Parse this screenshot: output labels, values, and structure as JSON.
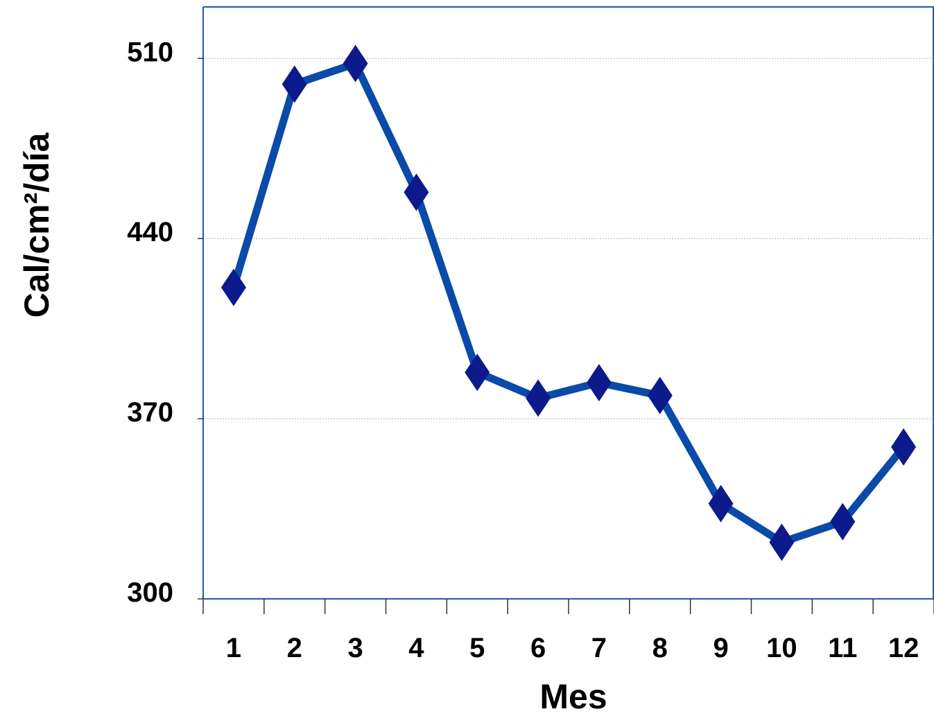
{
  "chart_data": {
    "type": "line",
    "categories": [
      "1",
      "2",
      "3",
      "4",
      "5",
      "6",
      "7",
      "8",
      "9",
      "10",
      "11",
      "12"
    ],
    "series": [
      {
        "values": [
          421,
          500,
          508,
          458,
          388,
          378,
          384,
          379,
          337,
          322,
          330,
          359
        ]
      }
    ],
    "title": "",
    "xlabel": "Mes",
    "ylabel": "Cal/cm²/día",
    "ylim": [
      300,
      530
    ],
    "yticks": [
      "300",
      "370",
      "440",
      "510"
    ],
    "grid": true,
    "marker": "diamond",
    "colors": {
      "line": "#0a4aa8",
      "marker": "#0d1a8c",
      "frame": "#2457a8",
      "grid": "#9fb0cc"
    }
  }
}
